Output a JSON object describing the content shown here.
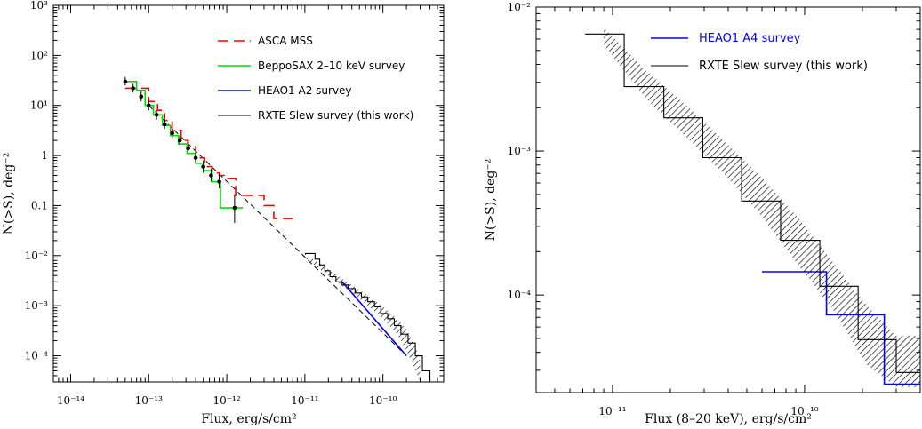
{
  "chart_data": [
    {
      "type": "line",
      "xlabel": "Flux, erg/s/cm²",
      "ylabel": "N(>S), deg⁻²",
      "xscale": "log",
      "yscale": "log",
      "xlim": [
        6e-15,
        6e-10
      ],
      "ylim": [
        3e-05,
        1000
      ],
      "x_ticks": [
        {
          "value": 1e-14,
          "label": "10⁻¹⁴"
        },
        {
          "value": 1e-13,
          "label": "10⁻¹³"
        },
        {
          "value": 1e-12,
          "label": "10⁻¹²"
        },
        {
          "value": 1e-11,
          "label": "10⁻¹¹"
        },
        {
          "value": 1e-10,
          "label": "10⁻¹⁰"
        }
      ],
      "y_ticks": [
        {
          "value": 0.0001,
          "label": "10⁻⁴"
        },
        {
          "value": 0.001,
          "label": "10⁻³"
        },
        {
          "value": 0.01,
          "label": "10⁻²"
        },
        {
          "value": 0.1,
          "label": "0.1"
        },
        {
          "value": 1,
          "label": "1"
        },
        {
          "value": 10,
          "label": "10¹"
        },
        {
          "value": 100,
          "label": "10²"
        },
        {
          "value": 1000,
          "label": "10³"
        }
      ],
      "legend_position": "top-right",
      "series": [
        {
          "name": "ASCA MSS",
          "color": "#ff0000",
          "style": "dashed-step",
          "x": [
            5e-14,
            8e-14,
            1e-13,
            1.3e-13,
            1.6e-13,
            2e-13,
            2.6e-13,
            3.2e-13,
            4e-13,
            5.2e-13,
            6.5e-13,
            8e-13,
            1e-12,
            1.3e-12,
            2e-12,
            3e-12,
            4e-12,
            7e-12
          ],
          "y": [
            22,
            22,
            12,
            8,
            5,
            3.2,
            2.0,
            1.5,
            0.9,
            0.6,
            0.45,
            0.4,
            0.35,
            0.16,
            0.16,
            0.1,
            0.055,
            0.055
          ]
        },
        {
          "name": "BeppoSAX 2–10 keV survey",
          "color": "#00dd00",
          "style": "step",
          "x": [
            5e-14,
            7e-14,
            9e-14,
            1.15e-13,
            1.5e-13,
            1.9e-13,
            2.4e-13,
            3.1e-13,
            4e-13,
            5.1e-13,
            6.5e-13,
            8.3e-13,
            1.05e-12,
            1.6e-12
          ],
          "y": [
            30,
            20,
            10,
            6.5,
            4,
            2.5,
            1.7,
            1.1,
            0.7,
            0.5,
            0.3,
            0.09,
            0.09,
            0.09
          ]
        },
        {
          "name": "HEAO1 A2 survey",
          "color": "#0000ff",
          "style": "line",
          "x": [
            3e-11,
            2e-10
          ],
          "y": [
            0.003,
            0.0001
          ]
        },
        {
          "name": "RXTE Slew survey (this work)",
          "color": "#000000",
          "style": "step",
          "x": [
            1e-11,
            1.35e-11,
            1.55e-11,
            1.8e-11,
            2.1e-11,
            2.5e-11,
            3e-11,
            3.6e-11,
            4.4e-11,
            5.3e-11,
            6.4e-11,
            7.8e-11,
            9.4e-11,
            1.15e-10,
            1.4e-10,
            1.7e-10,
            2.1e-10,
            2.6e-10,
            3.2e-10,
            4e-10
          ],
          "y": [
            0.011,
            0.0085,
            0.0065,
            0.005,
            0.0038,
            0.003,
            0.0026,
            0.0022,
            0.0018,
            0.0015,
            0.0012,
            0.00095,
            0.0007,
            0.00055,
            0.0004,
            0.00027,
            0.00018,
            0.0001,
            5e-05,
            3e-05
          ]
        }
      ],
      "points_with_errors": {
        "x": [
          5e-14,
          6.3e-14,
          8e-14,
          1e-13,
          1.26e-13,
          1.6e-13,
          2e-13,
          2.5e-13,
          3.2e-13,
          4e-13,
          5e-13,
          6.3e-13,
          8e-13,
          1.26e-12
        ],
        "y": [
          30,
          22,
          15,
          10,
          6.5,
          4.2,
          2.8,
          2.0,
          1.4,
          0.9,
          0.6,
          0.4,
          0.3,
          0.09
        ],
        "y_err_low": [
          25,
          18,
          12,
          8,
          5.2,
          3.4,
          2.2,
          1.6,
          1.1,
          0.7,
          0.45,
          0.3,
          0.22,
          0.045
        ],
        "y_err_high": [
          37,
          27,
          19,
          12.5,
          8,
          5.2,
          3.5,
          2.5,
          1.8,
          1.15,
          0.8,
          0.55,
          0.42,
          0.17
        ]
      },
      "model_line": {
        "style": "dashed",
        "x": [
          1e-13,
          2e-10
        ],
        "y": [
          10,
          0.0001
        ]
      },
      "hatched_band": {
        "x": [
          1e-11,
          2e-11,
          4e-11,
          6e-11,
          1e-10,
          1.5e-10,
          2e-10,
          2.5e-10,
          3e-10
        ],
        "y_low": [
          0.009,
          0.004,
          0.0018,
          0.0011,
          0.00055,
          0.00028,
          0.00013,
          6e-05,
          3e-05
        ],
        "y_high": [
          0.011,
          0.0052,
          0.0026,
          0.0017,
          0.00095,
          0.00055,
          0.00034,
          0.00018,
          8e-05
        ]
      }
    },
    {
      "type": "line",
      "xlabel": "Flux (8–20 keV), erg/s/cm²",
      "ylabel": "N(>S), deg⁻²",
      "xscale": "log",
      "yscale": "log",
      "xlim": [
        4e-12,
        4e-10
      ],
      "ylim": [
        2.1e-05,
        0.01
      ],
      "x_ticks": [
        {
          "value": 1e-11,
          "label": "10⁻¹¹"
        },
        {
          "value": 1e-10,
          "label": "10⁻¹⁰"
        }
      ],
      "y_ticks": [
        {
          "value": 0.0001,
          "label": "10⁻⁴"
        },
        {
          "value": 0.001,
          "label": "10⁻³"
        },
        {
          "value": 0.01,
          "label": "10⁻²"
        }
      ],
      "legend_position": "top-right",
      "series": [
        {
          "name": "HEAO1 A4 survey",
          "color": "#0000ff",
          "style": "step",
          "x": [
            6e-11,
            1.25e-10,
            1.3e-10,
            2.1e-10,
            2.6e-10,
            4e-10
          ],
          "y": [
            0.000145,
            0.000145,
            7.3e-05,
            7.3e-05,
            2.4e-05,
            2.4e-05
          ]
        },
        {
          "name": "RXTE Slew survey (this work)",
          "color": "#000000",
          "style": "step",
          "x": [
            7.2e-12,
            1.15e-11,
            1.85e-11,
            2.95e-11,
            4.7e-11,
            7.5e-11,
            1.2e-10,
            1.9e-10,
            3e-10,
            4e-10
          ],
          "y": [
            0.0065,
            0.0028,
            0.0017,
            0.0009,
            0.00045,
            0.00024,
            0.000115,
            4.9e-05,
            2.9e-05,
            2.9e-05
          ]
        }
      ],
      "hatched_band": {
        "x": [
          9e-12,
          1.5e-11,
          2.5e-11,
          4e-11,
          6e-11,
          9e-11,
          1.4e-10,
          2.1e-10,
          3e-10,
          4e-10
        ],
        "y_low": [
          0.0055,
          0.0023,
          0.0012,
          0.00065,
          0.00035,
          0.00017,
          8e-05,
          3.3e-05,
          2.3e-05,
          2.3e-05
        ],
        "y_high": [
          0.0072,
          0.0036,
          0.002,
          0.0011,
          0.00065,
          0.00036,
          0.00017,
          8.5e-05,
          5.2e-05,
          5.2e-05
        ]
      }
    }
  ]
}
